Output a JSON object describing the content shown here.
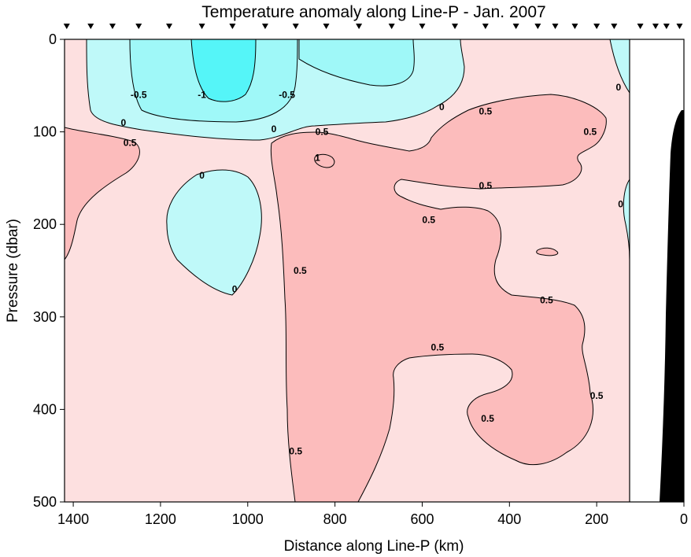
{
  "chart_data": {
    "type": "contour",
    "title": "Temperature anomaly along Line-P - Jan. 2007",
    "xlabel": "Distance along Line-P (km)",
    "ylabel": "Pressure (dbar)",
    "xlim": [
      1420,
      0
    ],
    "ylim": [
      500,
      0
    ],
    "x_ticks": [
      1400,
      1200,
      1000,
      800,
      600,
      400,
      200,
      0
    ],
    "y_ticks": [
      0,
      100,
      200,
      300,
      400,
      500
    ],
    "contour_levels": [
      -1,
      -0.5,
      0,
      0.5,
      1
    ],
    "level_colors": {
      "below_-1": "#55f5f8",
      "-1_to_-0.5": "#9ff8f8",
      "-0.5_to_0": "#bff9f9",
      "0_to_0.5": "#fde0e0",
      "0.5_to_1": "#fcbcbc",
      "outline": "#000000",
      "topography": "#000000"
    },
    "data_coverage_limit_km": 125,
    "station_positions_km": [
      1415,
      1360,
      1310,
      1250,
      1180,
      1105,
      1035,
      960,
      890,
      820,
      745,
      670,
      600,
      525,
      455,
      385,
      335,
      295,
      250,
      200,
      160,
      100,
      65,
      40,
      10
    ],
    "contour_labels": [
      {
        "text": "-0.5",
        "x": 1250,
        "y": 60
      },
      {
        "text": "-1",
        "x": 1105,
        "y": 60
      },
      {
        "text": "-0.5",
        "x": 910,
        "y": 60
      },
      {
        "text": "0",
        "x": 1285,
        "y": 90
      },
      {
        "text": "0.5",
        "x": 1270,
        "y": 112
      },
      {
        "text": "0",
        "x": 940,
        "y": 97
      },
      {
        "text": "0.5",
        "x": 830,
        "y": 100
      },
      {
        "text": "1",
        "x": 840,
        "y": 128
      },
      {
        "text": "0",
        "x": 555,
        "y": 73
      },
      {
        "text": "0.5",
        "x": 455,
        "y": 78
      },
      {
        "text": "0.5",
        "x": 215,
        "y": 100
      },
      {
        "text": "0",
        "x": 150,
        "y": 52
      },
      {
        "text": "0.5",
        "x": 455,
        "y": 158
      },
      {
        "text": "0",
        "x": 1105,
        "y": 147
      },
      {
        "text": "0",
        "x": 1030,
        "y": 270
      },
      {
        "text": "0.5",
        "x": 585,
        "y": 195
      },
      {
        "text": "0.5",
        "x": 315,
        "y": 282
      },
      {
        "text": "0",
        "x": 145,
        "y": 178
      },
      {
        "text": "0.5",
        "x": 880,
        "y": 250
      },
      {
        "text": "0.5",
        "x": 565,
        "y": 333
      },
      {
        "text": "0.5",
        "x": 200,
        "y": 385
      },
      {
        "text": "0.5",
        "x": 450,
        "y": 410
      },
      {
        "text": "0.5",
        "x": 890,
        "y": 445
      }
    ]
  }
}
